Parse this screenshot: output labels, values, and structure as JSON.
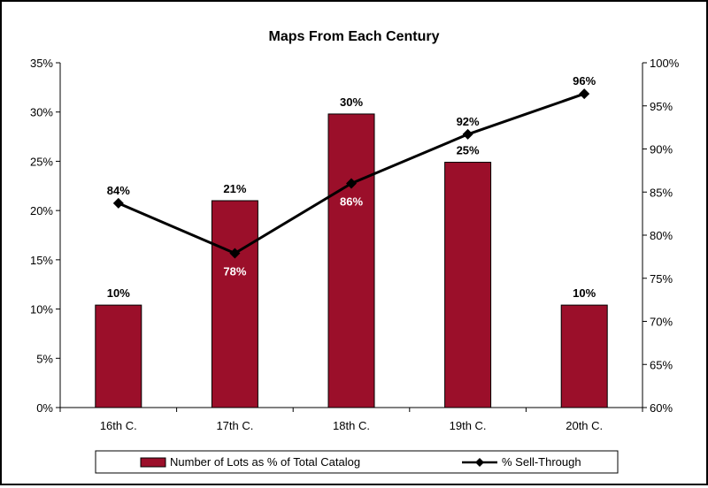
{
  "chart_data": {
    "type": "bar",
    "title": "Maps From Each Century",
    "categories": [
      "16th C.",
      "17th C.",
      "18th C.",
      "19th C.",
      "20th C."
    ],
    "series": [
      {
        "name": "Number of Lots as % of Total Catalog",
        "type": "bar",
        "axis": "left",
        "values": [
          10.4,
          21.0,
          29.8,
          24.9,
          10.4
        ],
        "labels": [
          "10%",
          "21%",
          "30%",
          "25%",
          "10%"
        ]
      },
      {
        "name": "% Sell-Through",
        "type": "line",
        "axis": "right",
        "values": [
          83.7,
          77.9,
          86.0,
          91.7,
          96.4
        ],
        "labels": [
          "84%",
          "78%",
          "86%",
          "92%",
          "96%"
        ]
      }
    ],
    "y_left": {
      "range": [
        0,
        35
      ],
      "ticks": [
        "0%",
        "5%",
        "10%",
        "15%",
        "20%",
        "25%",
        "30%",
        "35%"
      ]
    },
    "y_right": {
      "range": [
        60,
        100
      ],
      "ticks": [
        "60%",
        "65%",
        "70%",
        "75%",
        "80%",
        "85%",
        "90%",
        "95%",
        "100%"
      ]
    },
    "grid": false,
    "legend": "bottom",
    "colors": {
      "bar": "#9b0f2a",
      "line": "#000000",
      "bar_label": "#000000",
      "line_label_inside": "#ffffff"
    }
  }
}
